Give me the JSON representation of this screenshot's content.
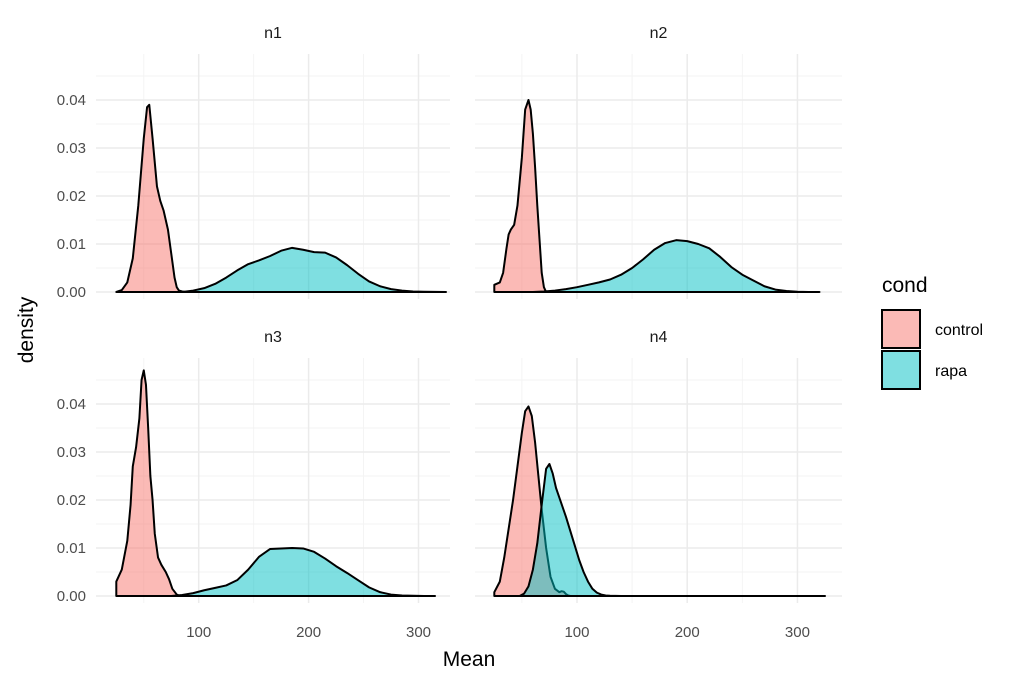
{
  "chart_data": {
    "type": "area",
    "xlabel": "Mean",
    "ylabel": "density",
    "legend": {
      "title": "cond",
      "placement": "right",
      "entries": [
        {
          "name": "control",
          "color": "#F8766D"
        },
        {
          "name": "rapa",
          "color": "#00BFC4"
        }
      ]
    },
    "grid": true,
    "fill_alpha": 0.5,
    "xlim": [
      22,
      325
    ],
    "x_ticks": [
      100,
      200,
      300
    ],
    "x_tick_labels": [
      "100",
      "200",
      "300"
    ],
    "x_minor_ticks": [
      50,
      150,
      250
    ],
    "panels": [
      {
        "label": "n1",
        "ylim": [
          0,
          0.0415
        ],
        "y_ticks": [
          0,
          0.01,
          0.02,
          0.03,
          0.04
        ],
        "y_tick_labels": [
          "0.00",
          "0.01",
          "0.02",
          "0.03",
          "0.04"
        ],
        "series": [
          {
            "name": "control",
            "x": [
              25,
              30,
              35,
              40,
              45,
              50,
              53,
              55,
              58,
              62,
              65,
              68,
              72,
              75,
              78,
              80,
              82,
              85,
              88
            ],
            "y": [
              0,
              0.0004,
              0.002,
              0.007,
              0.018,
              0.032,
              0.0385,
              0.039,
              0.032,
              0.022,
              0.019,
              0.017,
              0.013,
              0.008,
              0.003,
              0.001,
              0.0003,
              0.0001,
              0
            ]
          },
          {
            "name": "rapa",
            "x": [
              85,
              95,
              105,
              115,
              125,
              135,
              145,
              155,
              165,
              175,
              185,
              195,
              205,
              215,
              225,
              235,
              245,
              255,
              265,
              275,
              285,
              295,
              305,
              315,
              325
            ],
            "y": [
              0,
              0.0003,
              0.0008,
              0.0017,
              0.003,
              0.0045,
              0.0058,
              0.0066,
              0.0075,
              0.0086,
              0.0092,
              0.0088,
              0.0083,
              0.0082,
              0.0072,
              0.0056,
              0.0038,
              0.0022,
              0.0012,
              0.0006,
              0.0003,
              0.0001,
              5e-05,
              2e-05,
              0
            ]
          }
        ]
      },
      {
        "label": "n2",
        "ylim": [
          0,
          0.0415
        ],
        "y_ticks": [
          0,
          0.01,
          0.02,
          0.03,
          0.04
        ],
        "y_tick_labels": [
          "0.00",
          "0.01",
          "0.02",
          "0.03",
          "0.04"
        ],
        "series": [
          {
            "name": "control",
            "x": [
              25,
              30,
              33,
              36,
              38,
              40,
              43,
              46,
              50,
              53,
              56,
              58,
              60,
              62,
              64,
              66,
              68,
              70,
              72
            ],
            "y": [
              0.0015,
              0.002,
              0.004,
              0.009,
              0.012,
              0.013,
              0.014,
              0.018,
              0.028,
              0.038,
              0.04,
              0.038,
              0.033,
              0.026,
              0.018,
              0.011,
              0.004,
              0.001,
              0
            ]
          },
          {
            "name": "rapa",
            "x": [
              60,
              70,
              80,
              90,
              100,
              110,
              120,
              130,
              140,
              150,
              160,
              170,
              180,
              190,
              200,
              210,
              220,
              230,
              240,
              250,
              260,
              270,
              280,
              290,
              300,
              310,
              320
            ],
            "y": [
              0,
              0.0001,
              0.0003,
              0.0006,
              0.001,
              0.0015,
              0.002,
              0.0026,
              0.0036,
              0.005,
              0.0068,
              0.0088,
              0.0102,
              0.0108,
              0.0106,
              0.01,
              0.0091,
              0.0073,
              0.0052,
              0.0036,
              0.0024,
              0.0012,
              0.0005,
              0.0002,
              5e-05,
              1e-05,
              0
            ]
          }
        ]
      },
      {
        "label": "n3",
        "ylim": [
          0,
          0.0475
        ],
        "y_ticks": [
          0,
          0.01,
          0.02,
          0.03,
          0.04
        ],
        "y_tick_labels": [
          "0.00",
          "0.01",
          "0.02",
          "0.03",
          "0.04"
        ],
        "series": [
          {
            "name": "control",
            "x": [
              25,
              30,
              35,
              38,
              40,
              43,
              46,
              48,
              50,
              52,
              54,
              56,
              58,
              60,
              63,
              66,
              70,
              73,
              76,
              80,
              83
            ],
            "y": [
              0.003,
              0.0055,
              0.0115,
              0.019,
              0.027,
              0.031,
              0.037,
              0.045,
              0.047,
              0.044,
              0.035,
              0.025,
              0.02,
              0.013,
              0.008,
              0.0065,
              0.005,
              0.0035,
              0.0015,
              0.0003,
              0
            ]
          },
          {
            "name": "rapa",
            "x": [
              75,
              85,
              95,
              105,
              115,
              125,
              135,
              145,
              155,
              165,
              175,
              185,
              195,
              205,
              215,
              225,
              235,
              245,
              255,
              265,
              275,
              285,
              295,
              305,
              315
            ],
            "y": [
              0,
              0.0002,
              0.0006,
              0.0012,
              0.0017,
              0.0022,
              0.0033,
              0.0055,
              0.0082,
              0.0098,
              0.0099,
              0.01,
              0.0099,
              0.0092,
              0.0078,
              0.0062,
              0.0048,
              0.0033,
              0.0018,
              0.0008,
              0.0003,
              0.0001,
              4e-05,
              1e-05,
              0
            ]
          }
        ]
      },
      {
        "label": "n4",
        "ylim": [
          0,
          0.0475
        ],
        "y_ticks": [
          0,
          0.01,
          0.02,
          0.03,
          0.04
        ],
        "y_tick_labels": [
          "0.00",
          "0.01",
          "0.02",
          "0.03",
          "0.04"
        ],
        "series": [
          {
            "name": "control",
            "x": [
              25,
              30,
              34,
              38,
              42,
              46,
              50,
              53,
              56,
              59,
              62,
              65,
              68,
              72,
              76,
              80,
              84,
              86,
              88,
              90,
              92,
              94
            ],
            "y": [
              0.0008,
              0.003,
              0.008,
              0.014,
              0.02,
              0.027,
              0.034,
              0.0385,
              0.0395,
              0.0375,
              0.032,
              0.025,
              0.018,
              0.01,
              0.004,
              0.0015,
              0.0008,
              0.001,
              0.0009,
              0.0004,
              0.0001,
              0
            ]
          },
          {
            "name": "rapa",
            "x": [
              48,
              52,
              56,
              60,
              64,
              68,
              72,
              75,
              78,
              81,
              84,
              87,
              90,
              94,
              98,
              102,
              106,
              110,
              114,
              118,
              122,
              126,
              130,
              140,
              160,
              200,
              250,
              300,
              325
            ],
            "y": [
              0,
              0.0005,
              0.002,
              0.0055,
              0.011,
              0.019,
              0.0265,
              0.0275,
              0.0255,
              0.0225,
              0.0205,
              0.0185,
              0.0165,
              0.0135,
              0.0105,
              0.0075,
              0.005,
              0.003,
              0.0015,
              0.0007,
              0.0003,
              0.0001,
              5e-05,
              1e-05,
              0,
              0,
              0,
              0,
              0
            ]
          }
        ]
      }
    ]
  }
}
